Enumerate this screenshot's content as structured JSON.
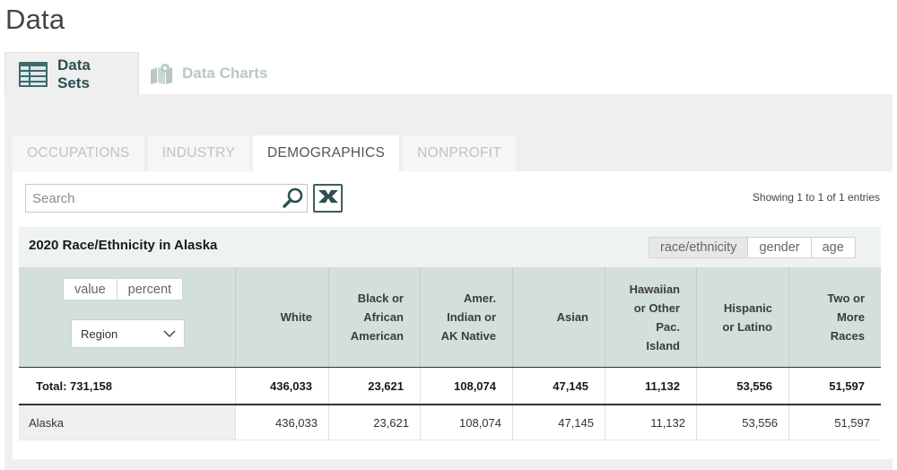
{
  "page": {
    "title": "Data"
  },
  "top_tabs": [
    {
      "label": "Data Sets",
      "icon": "table-icon",
      "active": true
    },
    {
      "label": "Data Charts",
      "icon": "map-icon",
      "active": false
    }
  ],
  "sub_tabs": [
    {
      "label": "OCCUPATIONS",
      "active": false
    },
    {
      "label": "INDUSTRY",
      "active": false
    },
    {
      "label": "DEMOGRAPHICS",
      "active": true
    },
    {
      "label": "NONPROFIT",
      "active": false
    }
  ],
  "search": {
    "placeholder": "Search",
    "value": ""
  },
  "excel_button": {
    "icon": "excel-export-icon"
  },
  "showing": "Showing 1 to 1 of 1 entries",
  "table": {
    "title": "2020 Race/Ethnicity in Alaska",
    "dimension_toggle": [
      {
        "label": "race/ethnicity",
        "selected": true
      },
      {
        "label": "gender",
        "selected": false
      },
      {
        "label": "age",
        "selected": false
      }
    ],
    "mode_toggle": [
      {
        "label": "value",
        "selected": false
      },
      {
        "label": "percent",
        "selected": false
      }
    ],
    "region_select": {
      "value": "Region"
    },
    "columns": [
      "White",
      "Black or African American",
      "Amer. Indian or AK Native",
      "Asian",
      "Hawaiian or Other Pac. Island",
      "Hispanic or Latino",
      "Two or More Races"
    ],
    "total_row": {
      "label": "Total: 731,158",
      "values": [
        "436,033",
        "23,621",
        "108,074",
        "47,145",
        "11,132",
        "53,556",
        "51,597"
      ]
    },
    "rows": [
      {
        "label": "Alaska",
        "values": [
          "436,033",
          "23,621",
          "108,074",
          "47,145",
          "11,132",
          "53,556",
          "51,597"
        ]
      }
    ]
  },
  "colors": {
    "accent": "#2d4f4f",
    "header_bg": "#d2dfdd",
    "panel_bg": "#efefef"
  }
}
